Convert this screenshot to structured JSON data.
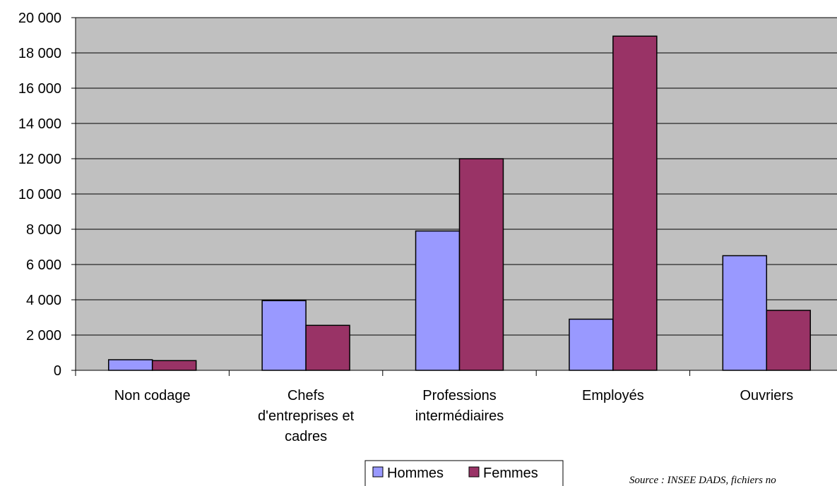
{
  "chart_data": {
    "type": "bar",
    "categories": [
      [
        "Non codage"
      ],
      [
        "Chefs",
        "d'entreprises et",
        "cadres"
      ],
      [
        "Professions",
        "intermédiaires"
      ],
      [
        "Employés"
      ],
      [
        "Ouvriers"
      ]
    ],
    "series": [
      {
        "name": "Hommes",
        "color": "#9999FF",
        "values": [
          600,
          3950,
          7900,
          2900,
          6500
        ]
      },
      {
        "name": "Femmes",
        "color": "#993366",
        "values": [
          550,
          2550,
          12000,
          18950,
          3400
        ]
      }
    ],
    "yticks": [
      "0",
      "2 000",
      "4 000",
      "6 000",
      "8 000",
      "10 000",
      "12 000",
      "14 000",
      "16 000",
      "18 000",
      "20 000"
    ],
    "ylim": [
      0,
      20000
    ],
    "grid": true,
    "plot_background": "#C0C0C0",
    "legend_position": "bottom",
    "title": "",
    "xlabel": "",
    "ylabel": ""
  },
  "source_note": "Source : INSEE DADS, fichiers no"
}
